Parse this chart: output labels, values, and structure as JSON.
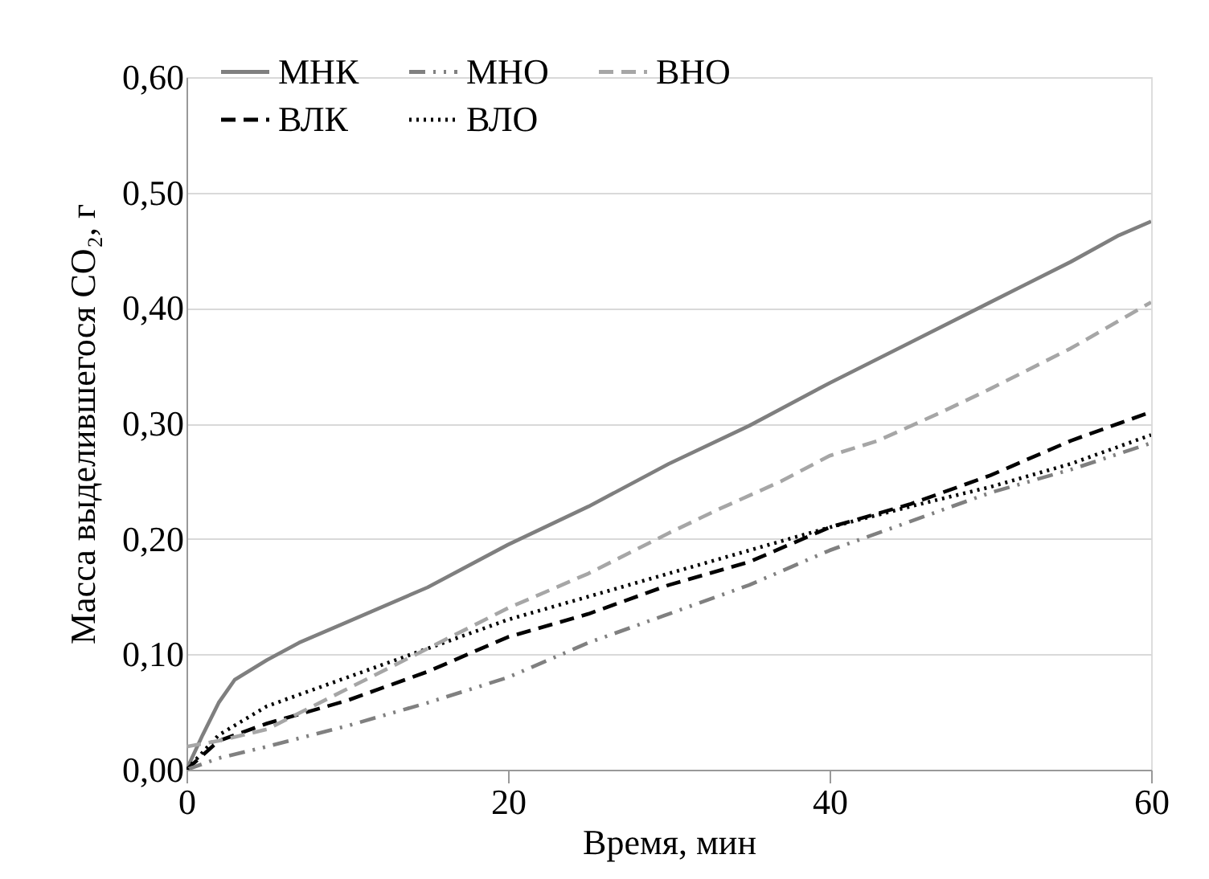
{
  "chart_data": {
    "type": "line",
    "xlabel": "Время, мин",
    "ylabel": "Масса выделившегося CO₂, г",
    "xlim": [
      0,
      60
    ],
    "xticks": [
      0,
      20,
      40,
      60
    ],
    "ylim": [
      0,
      0.6
    ],
    "yticks": [
      {
        "value": 0,
        "label": "0,00"
      },
      {
        "value": 0.1,
        "label": "0,10"
      },
      {
        "value": 0.2,
        "label": "0,20"
      },
      {
        "value": 0.3,
        "label": "0,30"
      },
      {
        "value": 0.4,
        "label": "0,40"
      },
      {
        "value": 0.5,
        "label": "0,50"
      },
      {
        "value": 0.6,
        "label": "0,60"
      }
    ],
    "grid": "y",
    "legend": "top",
    "marker": "none",
    "series": [
      {
        "name": "МНК",
        "color": "#7f7f7f",
        "line_style": "solid",
        "x": [
          0,
          1,
          2,
          3,
          5,
          7,
          10,
          15,
          20,
          25,
          30,
          35,
          40,
          45,
          50,
          55,
          58,
          60
        ],
        "values": [
          0,
          0.03,
          0.058,
          0.078,
          0.095,
          0.11,
          0.128,
          0.158,
          0.195,
          0.228,
          0.265,
          0.298,
          0.335,
          0.37,
          0.405,
          0.44,
          0.463,
          0.475
        ]
      },
      {
        "name": "ВЛК",
        "color": "#000000",
        "line_style": "dashed",
        "x": [
          0,
          2,
          5,
          10,
          15,
          20,
          25,
          30,
          35,
          40,
          45,
          50,
          55,
          58,
          60
        ],
        "values": [
          0,
          0.025,
          0.04,
          0.06,
          0.085,
          0.115,
          0.135,
          0.16,
          0.18,
          0.21,
          0.23,
          0.255,
          0.285,
          0.3,
          0.31
        ]
      },
      {
        "name": "МНО",
        "color": "#808080",
        "line_style": "dashdot",
        "x": [
          0,
          2,
          5,
          10,
          15,
          20,
          25,
          30,
          35,
          40,
          45,
          50,
          55,
          60
        ],
        "values": [
          0,
          0.01,
          0.02,
          0.038,
          0.058,
          0.08,
          0.11,
          0.135,
          0.16,
          0.19,
          0.215,
          0.24,
          0.26,
          0.283
        ]
      },
      {
        "name": "ВЛО",
        "color": "#000000",
        "line_style": "dotted",
        "x": [
          0,
          2,
          5,
          10,
          15,
          20,
          25,
          30,
          35,
          40,
          45,
          50,
          55,
          60
        ],
        "values": [
          0,
          0.03,
          0.055,
          0.08,
          0.105,
          0.13,
          0.15,
          0.17,
          0.19,
          0.21,
          0.228,
          0.245,
          0.265,
          0.29
        ]
      },
      {
        "name": "ВНО",
        "color": "#a6a6a6",
        "line_style": "dashed",
        "x": [
          0,
          2,
          5,
          10,
          15,
          20,
          25,
          30,
          33,
          37,
          40,
          43,
          47,
          50,
          55,
          60
        ],
        "values": [
          0.02,
          0.025,
          0.035,
          0.07,
          0.105,
          0.14,
          0.17,
          0.205,
          0.225,
          0.25,
          0.272,
          0.285,
          0.31,
          0.33,
          0.365,
          0.405
        ]
      }
    ]
  }
}
